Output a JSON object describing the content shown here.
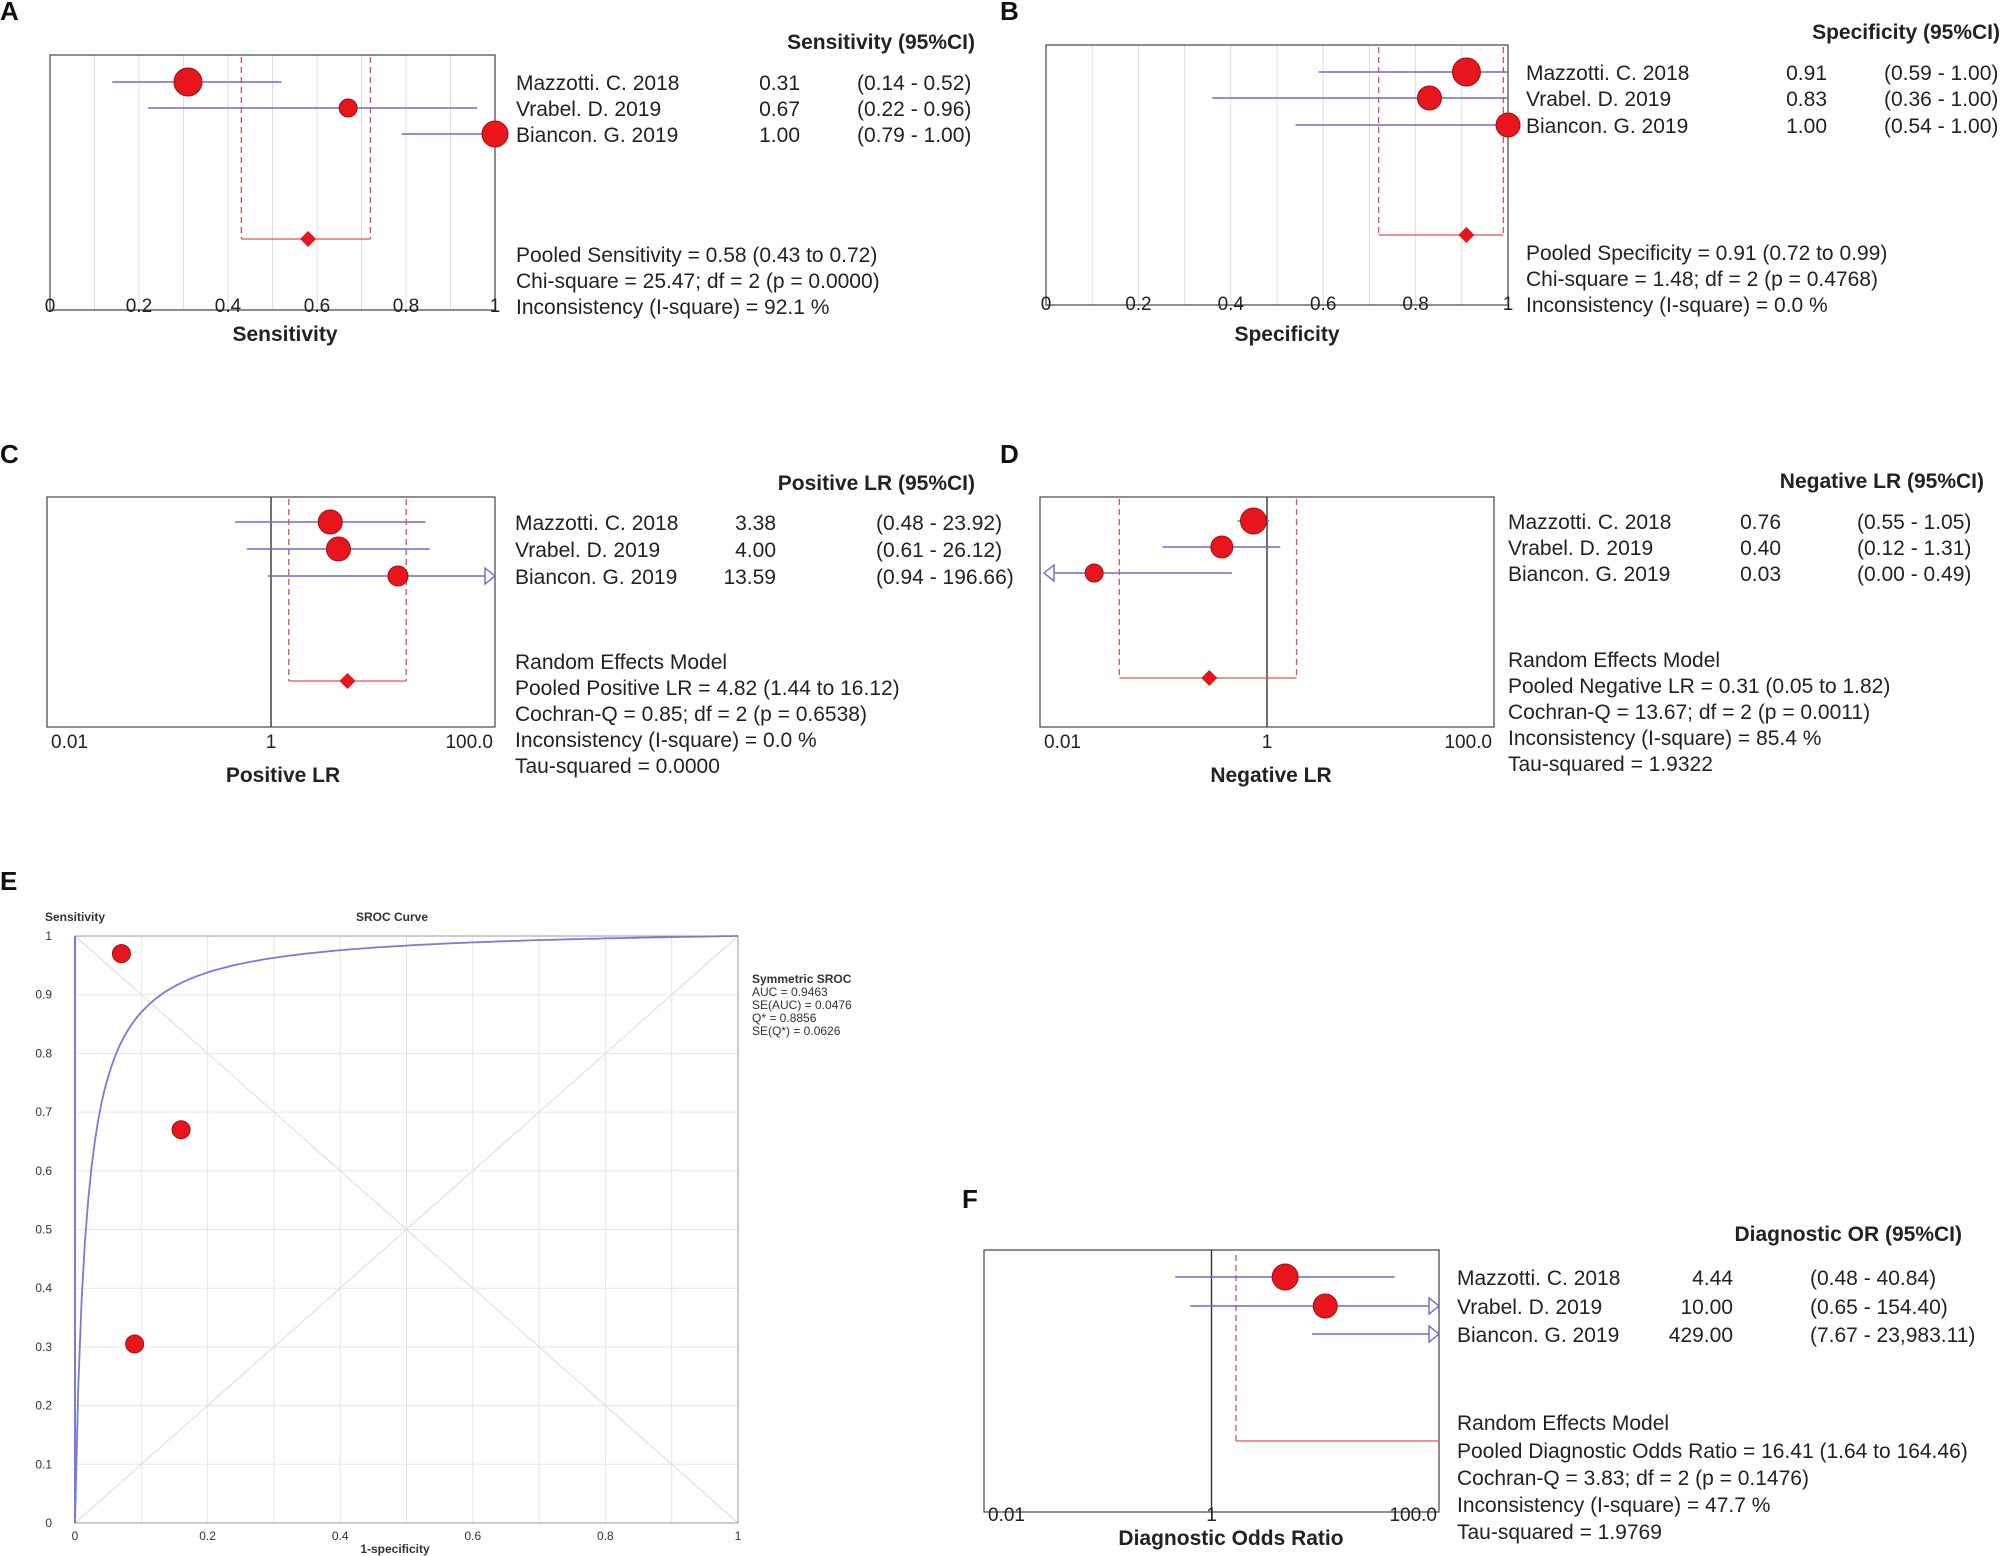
{
  "panels": {
    "A": {
      "letter": "A",
      "header": "Sensitivity (95%CI)",
      "axis_label": "Sensitivity",
      "ticks": [
        "0",
        "0.2",
        "0.4",
        "0.6",
        "0.8",
        "1"
      ],
      "studies": [
        {
          "name": "Mazzotti. C. 2018",
          "est": "0.31",
          "ci": "(0.14 - 0.52)"
        },
        {
          "name": "Vrabel. D. 2019",
          "est": "0.67",
          "ci": "(0.22 - 0.96)"
        },
        {
          "name": "Biancon. G. 2019",
          "est": "1.00",
          "ci": "(0.79 - 1.00)"
        }
      ],
      "summary": [
        "Pooled Sensitivity = 0.58 (0.43 to 0.72)",
        "Chi-square = 25.47; df =  2 (p = 0.0000)",
        "Inconsistency (I-square) = 92.1 %"
      ]
    },
    "B": {
      "letter": "B",
      "header": "Specificity (95%CI)",
      "axis_label": "Specificity",
      "ticks": [
        "0",
        "0.2",
        "0.4",
        "0.6",
        "0.8",
        "1"
      ],
      "studies": [
        {
          "name": "Mazzotti. C. 2018",
          "est": "0.91",
          "ci": "(0.59 - 1.00)"
        },
        {
          "name": "Vrabel. D. 2019",
          "est": "0.83",
          "ci": "(0.36 - 1.00)"
        },
        {
          "name": "Biancon. G. 2019",
          "est": "1.00",
          "ci": "(0.54 - 1.00)"
        }
      ],
      "summary": [
        "Pooled Specificity = 0.91 (0.72 to 0.99)",
        "Chi-square = 1.48; df =  2 (p = 0.4768)",
        "Inconsistency (I-square) = 0.0 %"
      ]
    },
    "C": {
      "letter": "C",
      "header": "Positive LR (95%CI)",
      "axis_label": "Positive LR",
      "ticks": [
        "0.01",
        "1",
        "100.0"
      ],
      "studies": [
        {
          "name": "Mazzotti. C. 2018",
          "est": "3.38",
          "ci": "(0.48 - 23.92)"
        },
        {
          "name": "Vrabel. D. 2019",
          "est": "4.00",
          "ci": "(0.61 - 26.12)"
        },
        {
          "name": "Biancon. G. 2019",
          "est": "13.59",
          "ci": "(0.94 - 196.66)"
        }
      ],
      "summary": [
        "Random Effects Model",
        "Pooled Positive LR = 4.82 (1.44 to 16.12)",
        "Cochran-Q = 0.85; df =  2 (p = 0.6538)",
        "Inconsistency (I-square) = 0.0 %",
        "Tau-squared = 0.0000"
      ]
    },
    "D": {
      "letter": "D",
      "header": "Negative LR (95%CI)",
      "axis_label": "Negative LR",
      "ticks": [
        "0.01",
        "1",
        "100.0"
      ],
      "studies": [
        {
          "name": "Mazzotti. C. 2018",
          "est": "0.76",
          "ci": "(0.55 - 1.05)"
        },
        {
          "name": "Vrabel. D. 2019",
          "est": "0.40",
          "ci": "(0.12 - 1.31)"
        },
        {
          "name": "Biancon. G. 2019",
          "est": "0.03",
          "ci": "(0.00 - 0.49)"
        }
      ],
      "summary": [
        "Random Effects Model",
        "Pooled Negative LR = 0.31 (0.05 to 1.82)",
        "Cochran-Q = 13.67; df =  2 (p = 0.0011)",
        "Inconsistency (I-square) = 85.4 %",
        "Tau-squared = 1.9322"
      ]
    },
    "E": {
      "letter": "E",
      "title": "SROC Curve",
      "ylabel": "Sensitivity",
      "xlabel": "1-specificity",
      "xticks": [
        "0",
        "0.2",
        "0.4",
        "0.6",
        "0.8",
        "1"
      ],
      "yticks": [
        "0",
        "0.1",
        "0.2",
        "0.3",
        "0.4",
        "0.5",
        "0.6",
        "0.7",
        "0.8",
        "0.9",
        "1"
      ],
      "legend": [
        "Symmetric SROC",
        "AUC = 0.9463",
        "SE(AUC) = 0.0476",
        "Q* = 0.8856",
        "SE(Q*) = 0.0626"
      ]
    },
    "F": {
      "letter": "F",
      "header": "Diagnostic OR (95%CI)",
      "axis_label": "Diagnostic Odds Ratio",
      "ticks": [
        "0.01",
        "1",
        "100.0"
      ],
      "studies": [
        {
          "name": "Mazzotti. C. 2018",
          "est": "4.44",
          "ci": "(0.48 - 40.84)"
        },
        {
          "name": "Vrabel. D. 2019",
          "est": "10.00",
          "ci": "(0.65 - 154.40)"
        },
        {
          "name": "Biancon. G. 2019",
          "est": "429.00",
          "ci": "(7.67 - 23,983.11)"
        }
      ],
      "summary": [
        "Random Effects Model",
        "Pooled Diagnostic Odds Ratio = 16.41 (1.64 to 164.46)",
        "Cochran-Q = 3.83; df =  2 (p = 0.1476)",
        "Inconsistency (I-square) = 47.7 %",
        "Tau-squared = 1.9769"
      ]
    }
  },
  "colors": {
    "point": "#e8161c",
    "ci_line": "#6a6ad0",
    "pooled": "#e05050",
    "grid": "#dddddd",
    "frame": "#444444",
    "sroc_curve": "#7a7ad8"
  },
  "chart_data": [
    {
      "type": "forest",
      "panel": "A",
      "scale": "linear",
      "xlim": [
        0,
        1
      ],
      "series": [
        {
          "name": "Mazzotti. C. 2018",
          "value": 0.31,
          "lower": 0.14,
          "upper": 0.52,
          "weight": "large"
        },
        {
          "name": "Vrabel. D. 2019",
          "value": 0.67,
          "lower": 0.22,
          "upper": 0.96,
          "weight": "small"
        },
        {
          "name": "Biancon. G. 2019",
          "value": 1.0,
          "lower": 0.79,
          "upper": 1.0,
          "weight": "medium"
        }
      ],
      "pooled": {
        "value": 0.58,
        "lower": 0.43,
        "upper": 0.72
      }
    },
    {
      "type": "forest",
      "panel": "B",
      "scale": "linear",
      "xlim": [
        0,
        1
      ],
      "series": [
        {
          "name": "Mazzotti. C. 2018",
          "value": 0.91,
          "lower": 0.59,
          "upper": 1.0,
          "weight": "large"
        },
        {
          "name": "Vrabel. D. 2019",
          "value": 0.83,
          "lower": 0.36,
          "upper": 1.0,
          "weight": "medium"
        },
        {
          "name": "Biancon. G. 2019",
          "value": 1.0,
          "lower": 0.54,
          "upper": 1.0,
          "weight": "medium"
        }
      ],
      "pooled": {
        "value": 0.91,
        "lower": 0.72,
        "upper": 0.99
      }
    },
    {
      "type": "forest",
      "panel": "C",
      "scale": "log",
      "xlim": [
        0.01,
        100
      ],
      "series": [
        {
          "name": "Mazzotti. C. 2018",
          "value": 3.38,
          "lower": 0.48,
          "upper": 23.92,
          "weight": "large"
        },
        {
          "name": "Vrabel. D. 2019",
          "value": 4.0,
          "lower": 0.61,
          "upper": 26.12,
          "weight": "large"
        },
        {
          "name": "Biancon. G. 2019",
          "value": 13.59,
          "lower": 0.94,
          "upper": 196.66,
          "weight": "medium"
        }
      ],
      "pooled": {
        "value": 4.82,
        "lower": 1.44,
        "upper": 16.12
      }
    },
    {
      "type": "forest",
      "panel": "D",
      "scale": "log",
      "xlim": [
        0.01,
        100
      ],
      "series": [
        {
          "name": "Mazzotti. C. 2018",
          "value": 0.76,
          "lower": 0.55,
          "upper": 1.05,
          "weight": "large"
        },
        {
          "name": "Vrabel. D. 2019",
          "value": 0.4,
          "lower": 0.12,
          "upper": 1.31,
          "weight": "large"
        },
        {
          "name": "Biancon. G. 2019",
          "value": 0.03,
          "lower": 0.0,
          "upper": 0.49,
          "weight": "medium"
        }
      ],
      "pooled": {
        "value": 0.31,
        "lower": 0.05,
        "upper": 1.82
      }
    },
    {
      "type": "scatter",
      "panel": "E",
      "title": "SROC Curve",
      "xlabel": "1-specificity",
      "ylabel": "Sensitivity",
      "xlim": [
        0,
        1
      ],
      "ylim": [
        0,
        1
      ],
      "points": [
        {
          "x": 0.07,
          "y": 0.97
        },
        {
          "x": 0.16,
          "y": 0.67
        },
        {
          "x": 0.09,
          "y": 0.305
        }
      ],
      "curve": {
        "name": "Symmetric SROC",
        "auc": 0.9463,
        "q_star": 0.8856
      }
    },
    {
      "type": "forest",
      "panel": "F",
      "scale": "log",
      "xlim": [
        0.01,
        100
      ],
      "series": [
        {
          "name": "Mazzotti. C. 2018",
          "value": 4.44,
          "lower": 0.48,
          "upper": 40.84,
          "weight": "large"
        },
        {
          "name": "Vrabel. D. 2019",
          "value": 10.0,
          "lower": 0.65,
          "upper": 154.4,
          "weight": "medium"
        },
        {
          "name": "Biancon. G. 2019",
          "value": 429.0,
          "lower": 7.67,
          "upper": 23983.11,
          "weight": "none"
        }
      ],
      "pooled": {
        "value": 16.41,
        "lower": 1.64,
        "upper": 164.46
      }
    }
  ]
}
